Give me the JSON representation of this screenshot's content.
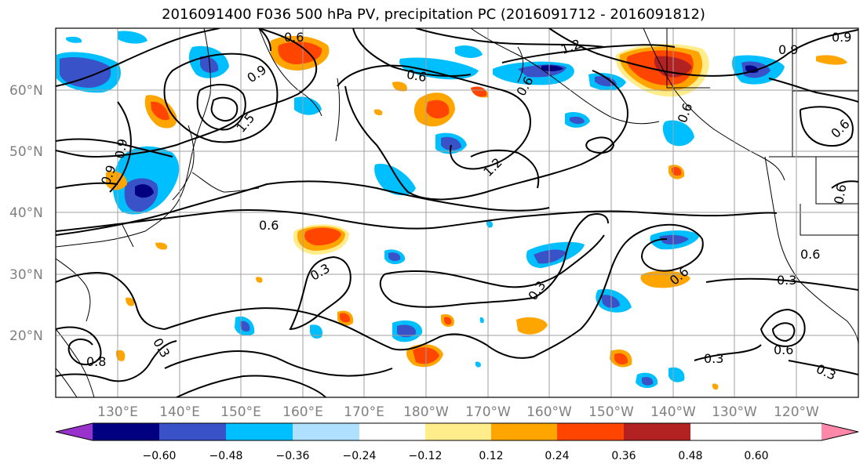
{
  "title": "2016091400 F036 500 hPa PV, precipitation PC (2016091712 - 2016091812)",
  "lat_labels": [
    "60°N",
    "50°N",
    "40°N",
    "30°N",
    "20°N"
  ],
  "lon_labels": [
    "130°E",
    "140°E",
    "150°E",
    "160°E",
    "170°E",
    "180°W",
    "170°W",
    "160°W",
    "150°W",
    "140°W",
    "130°W",
    "120°W"
  ],
  "colorbar": {
    "ticks": [
      "−0.60",
      "−0.48",
      "−0.36",
      "−0.24",
      "−0.12",
      "0.12",
      "0.24",
      "0.36",
      "0.48",
      "0.60"
    ],
    "colors": [
      "#9932CC",
      "#000080",
      "#3A52C8",
      "#00BFFF",
      "#B0E0FF",
      "#FFFFFF",
      "#FFEC8B",
      "#FFA500",
      "#FF4500",
      "#B22222",
      "#FF88AA"
    ]
  },
  "contour_labels": [
    "0.6",
    "0.9",
    "1.5",
    "0.9",
    "0.6",
    "1.2",
    "0.9",
    "0.6",
    "0.9",
    "0.9",
    "0.6",
    "1.2",
    "0.6",
    "0.6",
    "0.6",
    "0.3",
    "0.3",
    "0.6",
    "0.3",
    "0.6",
    "0.3",
    "0.6",
    "0.8",
    "0.3",
    "0.3"
  ]
}
